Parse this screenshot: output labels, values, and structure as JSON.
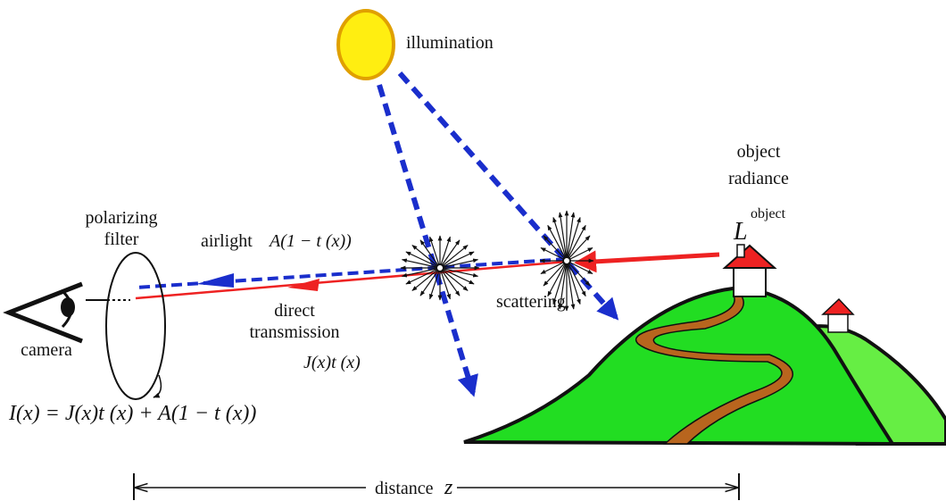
{
  "labels": {
    "illumination": "illumination",
    "object_radiance": [
      "object",
      "radiance"
    ],
    "radiance_symbol": {
      "base": "L",
      "sup": "object"
    },
    "polarizing_filter": [
      "polarizing",
      "filter"
    ],
    "airlight": {
      "label": "airlight",
      "formula": "A(1 − t (x))"
    },
    "direct_transmission": {
      "label": [
        "direct",
        "transmission"
      ],
      "formula": "J(x)t (x)"
    },
    "scattering": "scattering",
    "camera": "camera",
    "equation": "I(x) = J(x)t (x) + A(1 − t (x))",
    "distance": {
      "label": "distance",
      "symbol": "z"
    }
  }
}
